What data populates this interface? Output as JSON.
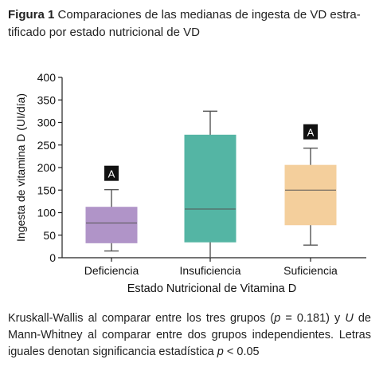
{
  "caption": {
    "label": "Figura 1",
    "text": "Comparaciones de las medianas de ingesta de VD estra-tificado por estado nutricional de VD"
  },
  "chart_data": {
    "type": "boxplot",
    "xlabel": "Estado Nutricional de Vitamina D",
    "ylabel": "Ingesta de vitamina D (UI/día)",
    "ylim": [
      0,
      400
    ],
    "yticks": [
      "0",
      "50",
      "100",
      "150",
      "200",
      "250",
      "300",
      "350",
      "400"
    ],
    "categories": [
      "Deficiencia",
      "Insuficiencia",
      "Suficiencia"
    ],
    "boxes": [
      {
        "category": "Deficiencia",
        "min": 15,
        "q1": 33,
        "median": 77,
        "q3": 112,
        "max": 151,
        "color": "#b094c8",
        "annotation": "A"
      },
      {
        "category": "Insuficiencia",
        "min": 0,
        "q1": 35,
        "median": 108,
        "q3": 272,
        "max": 325,
        "color": "#54b5a4",
        "annotation": ""
      },
      {
        "category": "Suficiencia",
        "min": 28,
        "q1": 73,
        "median": 150,
        "q3": 205,
        "max": 243,
        "color": "#f4cf9c",
        "annotation": "A"
      }
    ],
    "grid": false,
    "legend": "none"
  },
  "note": {
    "part1": "Kruskall-Wallis al comparar entre los tres grupos (",
    "p1": "p",
    "part2": " = 0.181) y ",
    "u": "U",
    "part3": " de Mann-Whitney al comparar entre dos grupos independientes. Letras iguales denotan significancia estadística ",
    "p2": "p",
    "part4": " < 0.05"
  }
}
